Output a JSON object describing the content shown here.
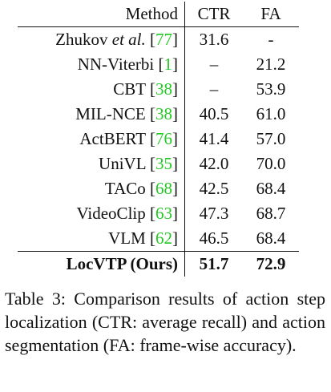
{
  "table": {
    "header": [
      "Method",
      "CTR",
      "FA"
    ],
    "rows": [
      {
        "method": "Zhukov",
        "method_italic": "et al.",
        "ref": "[77]",
        "ctr": "31.6",
        "fa": "-"
      },
      {
        "method": "NN-Viterbi",
        "ref": "[1]",
        "ctr": "–",
        "fa": "21.2"
      },
      {
        "method": "CBT",
        "ref": "[38]",
        "ctr": "–",
        "fa": "53.9"
      },
      {
        "method": "MIL-NCE",
        "ref": "[38]",
        "ctr": "40.5",
        "fa": "61.0"
      },
      {
        "method": "ActBERT",
        "ref": "[76]",
        "ctr": "41.4",
        "fa": "57.0"
      },
      {
        "method": "UniVL",
        "ref": "[35]",
        "ctr": "42.0",
        "fa": "70.0"
      },
      {
        "method": "TACo",
        "ref": "[68]",
        "ctr": "42.5",
        "fa": "68.4"
      },
      {
        "method": "VideoClip",
        "ref": "[63]",
        "ctr": "47.3",
        "fa": "68.7"
      },
      {
        "method": "VLM",
        "ref": "[62]",
        "ctr": "46.5",
        "fa": "68.4"
      },
      {
        "method": "LocVTP (Ours)",
        "ctr": "51.7",
        "fa": "72.9",
        "bold": true
      }
    ]
  },
  "caption": {
    "label": "Table 3:",
    "text": "Comparison results of action step localization (CTR: average recall) and action segmentation (FA: frame-wise accuracy)."
  }
}
